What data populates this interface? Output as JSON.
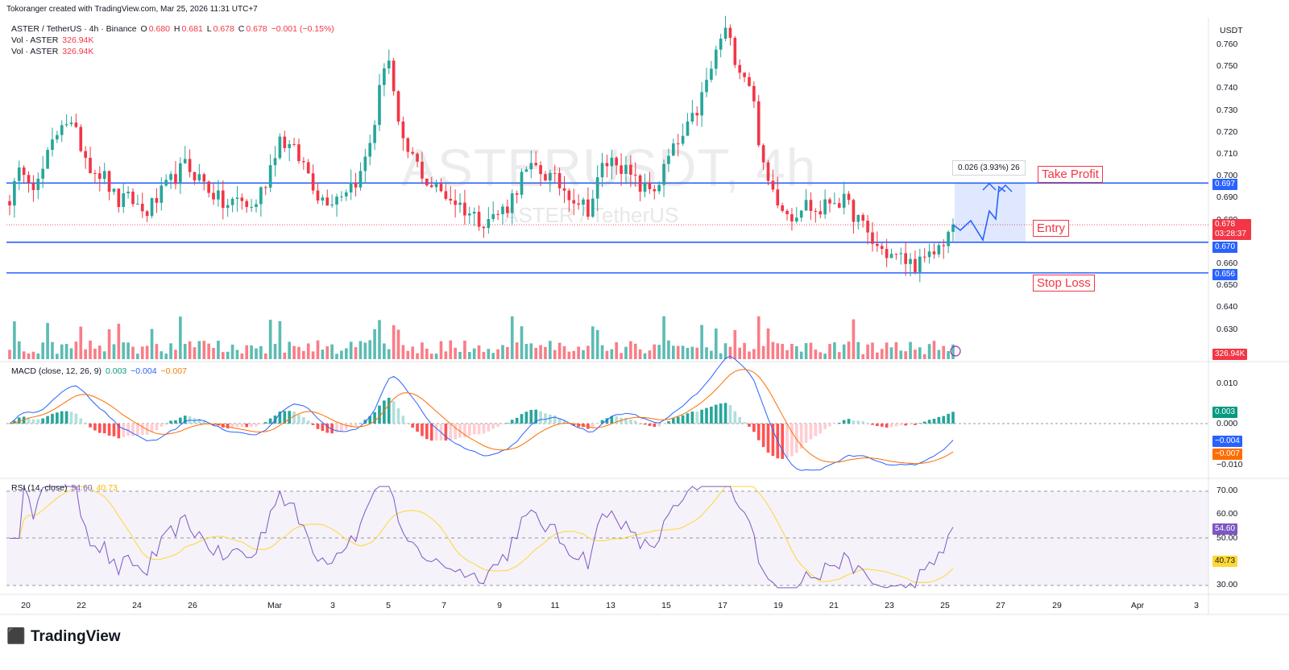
{
  "header": {
    "attribution": "Tokoranger created with TradingView.com, Mar 25, 2026 11:31 UTC+7",
    "symbol_line": "ASTER / TetherUS · 4h · Binance",
    "o_label": "O",
    "o_value": "0.680",
    "h_label": "H",
    "h_value": "0.681",
    "l_label": "L",
    "l_value": "0.678",
    "c_label": "C",
    "c_value": "0.678",
    "change": "−0.001 (−0.15%)",
    "vol_label_1": "Vol · ASTER",
    "vol_value_1": "326.94K",
    "vol_label_2": "Vol · ASTER",
    "vol_value_2": "326.94K"
  },
  "watermark": {
    "main": "ASTERUSDT, 4h",
    "sub": "ASTER / TetherUS"
  },
  "currency_label": "USDT",
  "annotations": {
    "take_profit": "Take Profit",
    "entry": "Entry",
    "stop_loss": "Stop Loss",
    "measure": "0.026 (3.93%) 26"
  },
  "price_tags": {
    "take_profit": "0.697",
    "entry": "0.670",
    "stop_loss": "0.656",
    "last_price": "0.678",
    "countdown": "03:28:37",
    "volume": "326.94K"
  },
  "macd": {
    "title": "MACD (close, 12, 26, 9)",
    "hist": "0.003",
    "macd": "−0.004",
    "signal": "−0.007",
    "axis": [
      "0.010",
      "0.000",
      "−0.010"
    ]
  },
  "rsi": {
    "title": "RSI (14, close)",
    "rsi": "54.60",
    "ma": "40.73",
    "axis": [
      "70.00",
      "60.00",
      "50.00",
      "30.00"
    ]
  },
  "brand": "TradingView",
  "colors": {
    "up": "#26a69a",
    "down": "#f23645",
    "level": "#2962ff",
    "macd": "#2962ff",
    "signal": "#ff6d00",
    "rsi": "#7e57c2",
    "rsi_ma": "#fdd835"
  },
  "chart_data": {
    "type": "candlestick",
    "price_axis": [
      "0.760",
      "0.750",
      "0.740",
      "0.730",
      "0.720",
      "0.710",
      "0.700",
      "0.690",
      "0.680",
      "0.660",
      "0.650",
      "0.640",
      "0.630"
    ],
    "price_range": [
      0.62,
      0.77
    ],
    "x_labels": [
      "20",
      "22",
      "24",
      "26",
      "Mar",
      "3",
      "5",
      "7",
      "9",
      "11",
      "13",
      "15",
      "17",
      "19",
      "21",
      "23",
      "25",
      "27",
      "29",
      "Apr",
      "3"
    ],
    "levels": {
      "take_profit": 0.697,
      "entry": 0.67,
      "stop_loss": 0.656,
      "last": 0.678
    },
    "anchors": [
      0.69,
      0.705,
      0.695,
      0.712,
      0.728,
      0.718,
      0.705,
      0.7,
      0.688,
      0.69,
      0.683,
      0.69,
      0.698,
      0.705,
      0.7,
      0.693,
      0.686,
      0.69,
      0.685,
      0.698,
      0.718,
      0.712,
      0.704,
      0.69,
      0.69,
      0.695,
      0.7,
      0.722,
      0.76,
      0.715,
      0.708,
      0.697,
      0.693,
      0.689,
      0.684,
      0.68,
      0.682,
      0.687,
      0.7,
      0.704,
      0.7,
      0.695,
      0.69,
      0.685,
      0.705,
      0.708,
      0.7,
      0.694,
      0.695,
      0.71,
      0.718,
      0.73,
      0.748,
      0.768,
      0.752,
      0.742,
      0.7,
      0.69,
      0.682,
      0.688,
      0.683,
      0.69,
      0.688,
      0.68,
      0.67,
      0.665,
      0.663,
      0.66,
      0.661,
      0.668,
      0.678
    ]
  }
}
